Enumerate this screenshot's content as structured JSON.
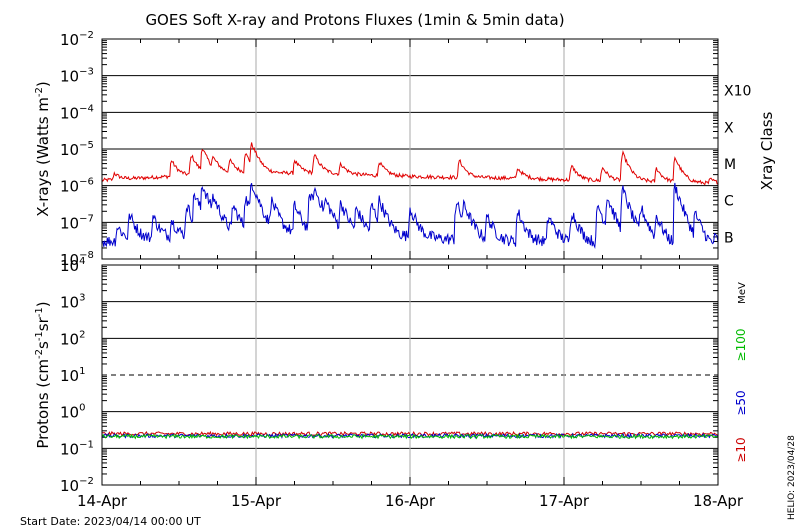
{
  "title": "GOES Soft X-ray and Protons Fluxes   (1min & 5min data)",
  "footer": {
    "start_date": "Start Date: 2023/04/14 00:00 UT",
    "helio": "HELIO: 2023/04/28"
  },
  "colors": {
    "xray_long": "#e00000",
    "xray_short": "#0000cc",
    "p10": "#cc0000",
    "p50": "#0000cc",
    "p100": "#00bb00",
    "grid": "#000000",
    "vgrid": "#aaaaaa"
  },
  "chart_data": [
    {
      "type": "line",
      "panel": "xray",
      "ylabel": "X-rays (Watts m",
      "ylabel_sup": "-2",
      "ylabel_end": ")",
      "yscale": "log",
      "ylim_exp": [
        -8,
        -2
      ],
      "ytick_exp": [
        -8,
        -7,
        -6,
        -5,
        -4,
        -3,
        -2
      ],
      "right_axis_label": "Xray Class",
      "class_labels": [
        {
          "label": "B",
          "exp": -7
        },
        {
          "label": "C",
          "exp": -6
        },
        {
          "label": "M",
          "exp": -5
        },
        {
          "label": "X",
          "exp": -4
        },
        {
          "label": "X10",
          "exp": -3
        }
      ],
      "x_days": [
        0,
        4
      ],
      "xtick_labels": [
        "14-Apr",
        "15-Apr",
        "16-Apr",
        "17-Apr",
        "18-Apr"
      ],
      "series": [
        {
          "color_key": "xray_long",
          "base": [
            1.4e-06,
            1.8e-06,
            2.2e-06,
            2.2e-06,
            1.9e-06,
            1.7e-06,
            1.6e-06,
            1.4e-06,
            1.3e-06,
            1.15e-06
          ],
          "spikes": [
            [
              0.08,
              2.2e-06
            ],
            [
              0.45,
              5e-06
            ],
            [
              0.58,
              7e-06
            ],
            [
              0.65,
              1.1e-05
            ],
            [
              0.72,
              6e-06
            ],
            [
              0.83,
              5e-06
            ],
            [
              0.93,
              8e-06
            ],
            [
              0.97,
              1.4e-05
            ],
            [
              1.25,
              5e-06
            ],
            [
              1.38,
              7e-06
            ],
            [
              1.55,
              4e-06
            ],
            [
              1.8,
              4.5e-06
            ],
            [
              2.32,
              5e-06
            ],
            [
              2.7,
              3e-06
            ],
            [
              2.98,
              1.2e-06
            ],
            [
              3.05,
              3.5e-06
            ],
            [
              3.25,
              3.2e-06
            ],
            [
              3.38,
              8e-06
            ],
            [
              3.6,
              3e-06
            ],
            [
              3.72,
              6e-06
            ],
            [
              3.95,
              1.5e-06
            ]
          ]
        },
        {
          "color_key": "xray_short",
          "base": [
            3e-08,
            3.8e-08,
            5e-08,
            5e-08,
            4.5e-08,
            3.5e-08,
            3e-08,
            2.8e-08,
            2.5e-08,
            2e-08
          ],
          "spikes": [
            [
              0.1,
              8e-08
            ],
            [
              0.18,
              1.6e-07
            ],
            [
              0.33,
              1.5e-07
            ],
            [
              0.45,
              1.2e-07
            ],
            [
              0.55,
              3e-07
            ],
            [
              0.6,
              6e-07
            ],
            [
              0.65,
              1.1e-06
            ],
            [
              0.72,
              5e-07
            ],
            [
              0.85,
              3e-07
            ],
            [
              0.93,
              5e-07
            ],
            [
              0.97,
              1.3e-06
            ],
            [
              1.1,
              4e-07
            ],
            [
              1.25,
              3e-07
            ],
            [
              1.35,
              6e-07
            ],
            [
              1.38,
              8e-07
            ],
            [
              1.45,
              4e-07
            ],
            [
              1.55,
              3.5e-07
            ],
            [
              1.65,
              2.5e-07
            ],
            [
              1.75,
              3e-07
            ],
            [
              1.8,
              4e-07
            ],
            [
              2.0,
              2.5e-07
            ],
            [
              2.3,
              3.5e-07
            ],
            [
              2.35,
              3e-07
            ],
            [
              2.5,
              1.5e-07
            ],
            [
              2.7,
              2e-07
            ],
            [
              2.9,
              1.5e-07
            ],
            [
              3.05,
              2e-07
            ],
            [
              3.22,
              3e-07
            ],
            [
              3.28,
              5e-07
            ],
            [
              3.38,
              8e-07
            ],
            [
              3.5,
              2.5e-07
            ],
            [
              3.6,
              1.5e-07
            ],
            [
              3.72,
              1e-06
            ],
            [
              3.85,
              1.8e-07
            ],
            [
              3.98,
              4e-08
            ]
          ]
        }
      ]
    },
    {
      "type": "line",
      "panel": "protons",
      "ylabel": "Protons (cm",
      "ylabel_sup1": "-2",
      "ylabel_mid": "s",
      "ylabel_sup2": "-1",
      "ylabel_mid2": "sr",
      "ylabel_sup3": "-1",
      "ylabel_end": ")",
      "yscale": "log",
      "ylim_exp": [
        -2,
        4
      ],
      "ytick_exp": [
        -2,
        -1,
        0,
        1,
        2,
        3,
        4
      ],
      "threshold_exp": 1,
      "energy_unit": "MeV",
      "energy_labels": [
        {
          "label": "≥100",
          "color_key": "p100"
        },
        {
          "label": "≥50",
          "color_key": "p50"
        },
        {
          "label": "≥10",
          "color_key": "p10"
        }
      ],
      "x_days": [
        0,
        4
      ],
      "xtick_labels": [
        "14-Apr",
        "15-Apr",
        "16-Apr",
        "17-Apr",
        "18-Apr"
      ],
      "series": [
        {
          "color_key": "p10",
          "level": 0.25
        },
        {
          "color_key": "p50",
          "level": 0.22
        },
        {
          "color_key": "p100",
          "level": 0.21
        }
      ]
    }
  ]
}
